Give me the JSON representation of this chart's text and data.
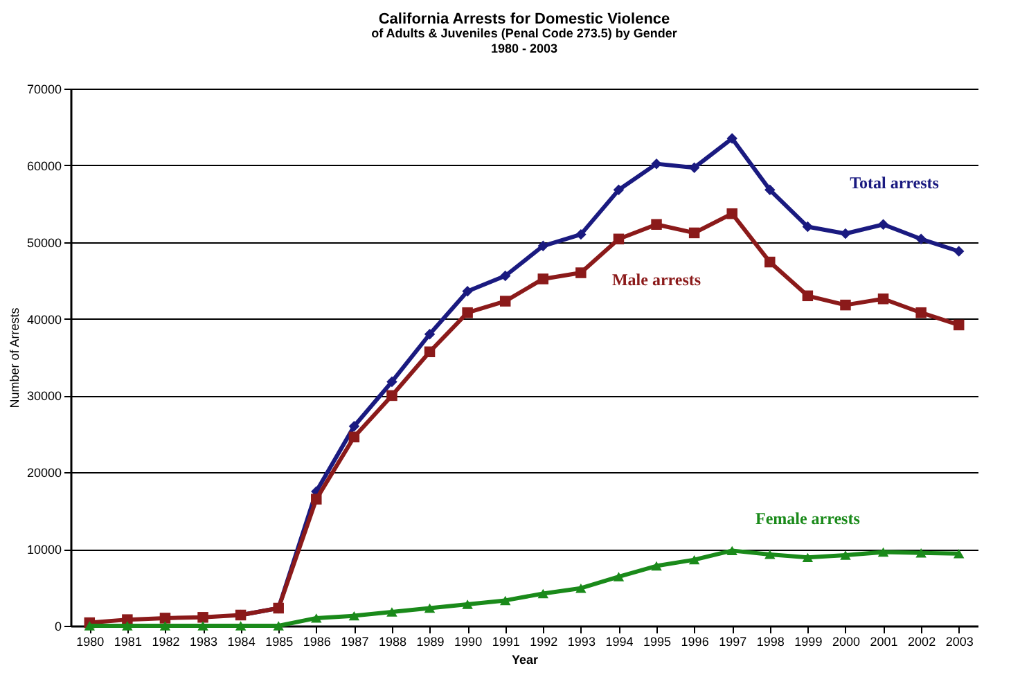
{
  "chart_data": {
    "type": "line",
    "title": "California Arrests for Domestic Violence",
    "subtitle": [
      "of Adults & Juveniles (Penal Code 273.5) by Gender",
      "1980 - 2003"
    ],
    "xlabel": "Year",
    "ylabel": "Number of Arrests",
    "categories": [
      "1980",
      "1981",
      "1982",
      "1983",
      "1984",
      "1985",
      "1986",
      "1987",
      "1988",
      "1989",
      "1990",
      "1991",
      "1992",
      "1993",
      "1994",
      "1995",
      "1996",
      "1997",
      "1998",
      "1999",
      "2000",
      "2001",
      "2002",
      "2003"
    ],
    "series": [
      {
        "name": "Total arrests",
        "color": "#1a1a80",
        "marker": "diamond",
        "values": [
          null,
          null,
          null,
          null,
          1400,
          2300,
          17500,
          26000,
          31800,
          38000,
          43600,
          45600,
          49500,
          51000,
          56800,
          60200,
          59700,
          63500,
          56800,
          52000,
          51100,
          52300,
          50400,
          48800
        ]
      },
      {
        "name": "Male arrests",
        "color": "#8b1a1a",
        "marker": "square",
        "values": [
          400,
          800,
          1000,
          1100,
          1400,
          2300,
          16500,
          24600,
          30000,
          35700,
          40800,
          42300,
          45200,
          46000,
          50400,
          52300,
          51200,
          53700,
          47400,
          43000,
          41800,
          42600,
          40800,
          39200
        ]
      },
      {
        "name": "Female arrests",
        "color": "#1a8a1a",
        "marker": "triangle",
        "values": [
          0,
          0,
          0,
          0,
          0,
          0,
          1000,
          1300,
          1800,
          2300,
          2800,
          3300,
          4200,
          4900,
          6400,
          7800,
          8600,
          9800,
          9300,
          8900,
          9200,
          9600,
          9500,
          9400
        ]
      }
    ],
    "ylim": [
      0,
      70000
    ],
    "yticks": [
      0,
      10000,
      20000,
      30000,
      40000,
      50000,
      60000,
      70000
    ],
    "grid": "y",
    "line_style": "solid"
  }
}
